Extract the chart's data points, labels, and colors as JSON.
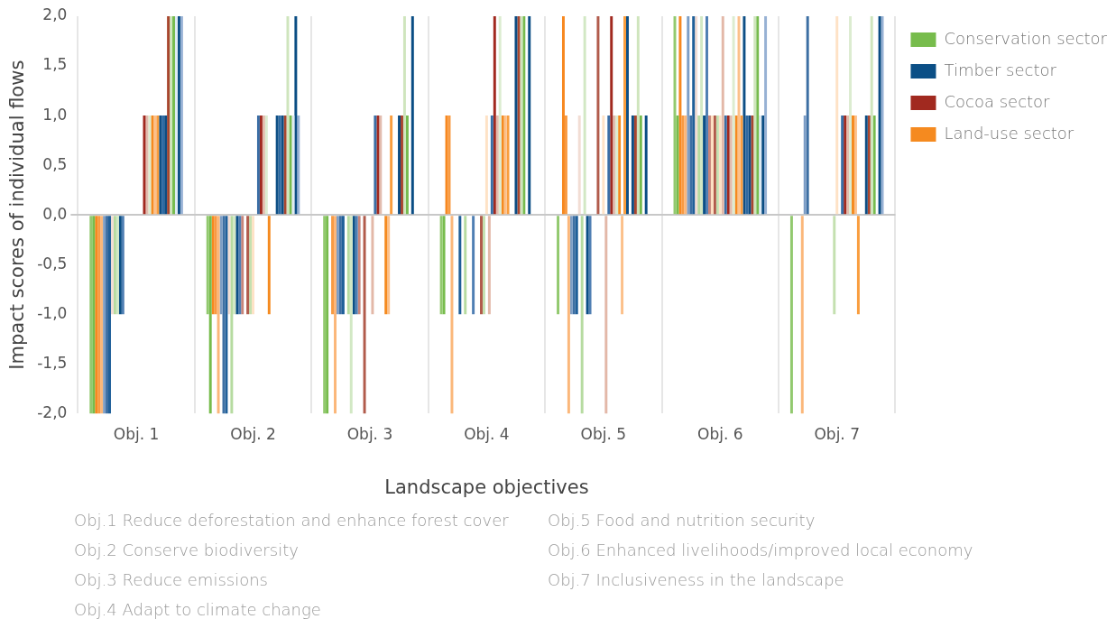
{
  "chart_data": {
    "type": "bar",
    "xlabel": "Landscape objectives",
    "ylabel": "Impact scores of individual flows",
    "categories": [
      "Obj. 1",
      "Obj. 2",
      "Obj. 3",
      "Obj. 4",
      "Obj. 5",
      "Obj. 6",
      "Obj. 7"
    ],
    "ylim": [
      -2,
      2
    ],
    "yticks": [
      {
        "value": -2,
        "label": "-2,0"
      },
      {
        "value": -1.5,
        "label": "-1,5"
      },
      {
        "value": -1,
        "label": "-1,0"
      },
      {
        "value": -0.5,
        "label": "-0,5"
      },
      {
        "value": 0,
        "label": "0,0"
      },
      {
        "value": 0.5,
        "label": "0,5"
      },
      {
        "value": 1,
        "label": "1,0"
      },
      {
        "value": 1.5,
        "label": "1,5"
      },
      {
        "value": 2,
        "label": "2,0"
      }
    ],
    "grid": "x",
    "legend": "right",
    "series": [
      {
        "color": "#92c96e",
        "values": [
          -2,
          -1,
          -2,
          -1,
          -1,
          2,
          -2
        ]
      },
      {
        "name": "Conservation sector",
        "color": "#77bc4c",
        "values": [
          -2,
          -2,
          -2,
          -1,
          0,
          1,
          0
        ]
      },
      {
        "color": "#f7881f",
        "values": [
          -2,
          -1,
          0,
          1,
          2,
          2,
          0
        ]
      },
      {
        "color": "#f89a42",
        "values": [
          -2,
          -1,
          -1,
          1,
          1,
          1,
          0
        ]
      },
      {
        "color": "#fbb77a",
        "values": [
          -2,
          -2,
          -2,
          -2,
          -2,
          1,
          -2
        ]
      },
      {
        "color": "#7d9ec6",
        "values": [
          -2,
          -1,
          -1,
          0,
          -1,
          2,
          1
        ]
      },
      {
        "color": "#3d6fa3",
        "values": [
          -2,
          -2,
          -1,
          0,
          -1,
          1,
          2
        ]
      },
      {
        "color": "#1f5f99",
        "values": [
          -2,
          -2,
          -1,
          -1,
          -1,
          2,
          0
        ]
      },
      {
        "color": "#f2ddd4",
        "values": [
          -1,
          -1,
          0,
          0,
          1,
          2,
          0
        ]
      },
      {
        "color": "#b6dba0",
        "values": [
          -1,
          -2,
          -1,
          -1,
          -2,
          1,
          0
        ]
      },
      {
        "color": "#d2e8c4",
        "values": [
          -1,
          -1,
          -2,
          0,
          2,
          2,
          0
        ]
      },
      {
        "name": "Timber sector",
        "color": "#0b4f86",
        "values": [
          -1,
          -1,
          -1,
          0,
          -1,
          1,
          0
        ]
      },
      {
        "color": "#4f7fb3",
        "values": [
          -1,
          -1,
          -1,
          -1,
          -1,
          2,
          0
        ]
      },
      {
        "color": "#c8857a",
        "values": [
          0,
          -1,
          -1,
          0,
          0,
          1,
          0
        ]
      },
      {
        "color": "#fde0c2",
        "values": [
          0,
          0,
          0,
          0,
          0,
          1,
          0
        ]
      },
      {
        "color": "#b15b4b",
        "values": [
          0,
          -1,
          -2,
          -1,
          2,
          1,
          0
        ]
      },
      {
        "color": "#c4e0b0",
        "values": [
          0,
          -1,
          0,
          -1,
          0,
          1,
          -1
        ]
      },
      {
        "color": "#fee2c6",
        "values": [
          0,
          -1,
          0,
          1,
          1,
          1,
          2
        ]
      },
      {
        "color": "#e3b8a8",
        "values": [
          0,
          0,
          -1,
          -1,
          -2,
          2,
          0
        ]
      },
      {
        "color": "#3a6ea5",
        "values": [
          0,
          1,
          1,
          1,
          1,
          1,
          1
        ]
      },
      {
        "name": "Cocoa sector",
        "color": "#a1291f",
        "values": [
          1,
          1,
          1,
          2,
          2,
          1,
          1
        ]
      },
      {
        "color": "#e2bcae",
        "values": [
          1,
          1,
          1,
          1,
          1,
          1,
          1
        ]
      },
      {
        "color": "#dcecd0",
        "values": [
          1,
          1,
          0,
          2,
          1,
          2,
          2
        ]
      },
      {
        "name": "Land-use sector",
        "color": "#f58a1f",
        "values": [
          1,
          -1,
          -1,
          1,
          1,
          1,
          1
        ]
      },
      {
        "color": "#fcc08a",
        "values": [
          1,
          0,
          -1,
          1,
          -1,
          2,
          1
        ]
      },
      {
        "color": "#f99d3d",
        "values": [
          1,
          0,
          1,
          1,
          2,
          1,
          -1
        ]
      },
      {
        "color": "#0e4f85",
        "values": [
          1,
          1,
          0,
          0,
          2,
          2,
          0
        ]
      },
      {
        "color": "#2e6aa2",
        "values": [
          1,
          1,
          0,
          0,
          0,
          1,
          0
        ]
      },
      {
        "color": "#0d4c82",
        "values": [
          1,
          1,
          1,
          2,
          1,
          1,
          1
        ]
      },
      {
        "color": "#a8462f",
        "values": [
          2,
          1,
          1,
          2,
          1,
          1,
          1
        ]
      },
      {
        "color": "#cfe5bd",
        "values": [
          2,
          2,
          2,
          2,
          2,
          2,
          2
        ]
      },
      {
        "color": "#76bb4e",
        "values": [
          2,
          1,
          1,
          2,
          1,
          2,
          1
        ]
      },
      {
        "color": "#dfeaf3",
        "values": [
          2,
          1,
          0,
          0,
          0,
          1,
          0
        ]
      },
      {
        "color": "#0a4d84",
        "values": [
          2,
          2,
          2,
          2,
          1,
          1,
          2
        ]
      },
      {
        "color": "#97b1d4",
        "values": [
          2,
          1,
          0,
          0,
          0,
          2,
          2
        ]
      }
    ],
    "annotations": [
      "Obj.1 Reduce deforestation and enhance forest cover",
      "Obj.2 Conserve biodiversity",
      "Obj.3 Reduce emissions",
      "Obj.4 Adapt to climate change",
      "Obj.5 Food and nutrition security",
      "Obj.6 Enhanced livelihoods/improved local economy",
      "Obj.7 Inclusiveness in the landscape"
    ]
  }
}
